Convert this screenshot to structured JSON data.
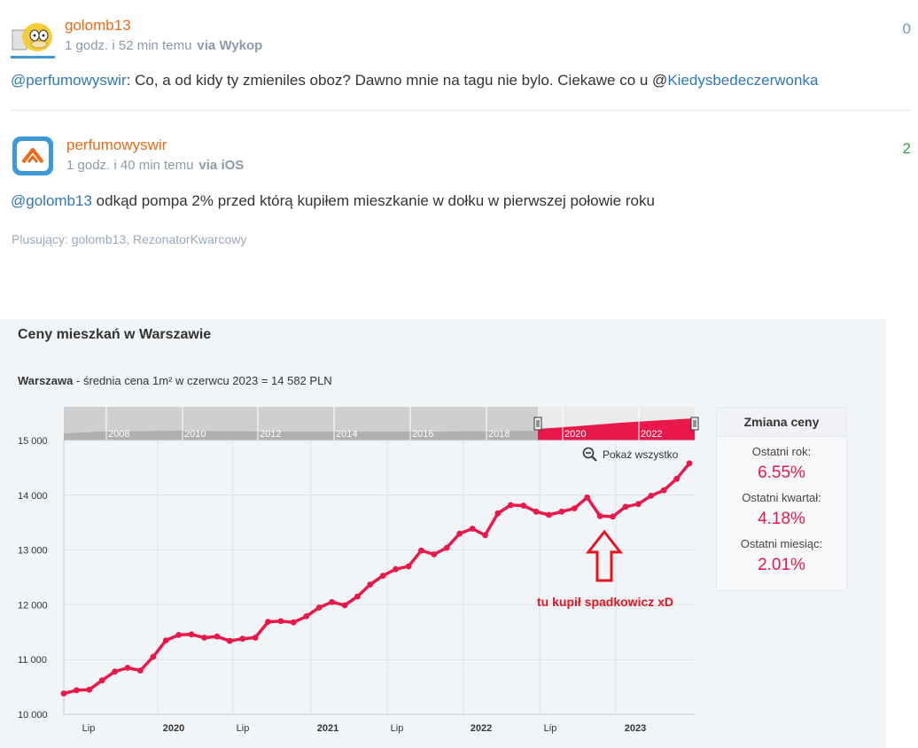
{
  "comments": [
    {
      "author": "golomb13",
      "time": "1 godz. i 52 min temu",
      "via": "via Wykop",
      "votes": "0",
      "mention1": "@perfumowyswir",
      "text": ": Co, a od kidy ty zmieniles oboz? Dawno mnie na tagu nie bylo. Ciekawe co u @",
      "mention2": "Kiedysbedeczerwonka"
    },
    {
      "author": "perfumowyswir",
      "time": "1 godz. i 40 min temu",
      "via": "via iOS",
      "votes": "2",
      "mention1": "@golomb13",
      "text": " odkąd pompa 2% przed którą kupiłem mieszkanie w dołku w pierwszej połowie roku",
      "voters_label": "Plusujący:",
      "voters": "golomb13, RezonatorKwarcowy"
    }
  ],
  "panel": {
    "title": "Ceny mieszkań w Warszawie",
    "subtitle_city": "Warszawa",
    "subtitle_text": " - średnia cena 1m² w czerwcu 2023 = 14 582 PLN",
    "show_all": "Pokaż wszystko",
    "annotation": "tu kupił spadkowicz xD",
    "stats": {
      "header": "Zmiana ceny",
      "items": [
        {
          "label": "Ostatni rok:",
          "value": "6.55%"
        },
        {
          "label": "Ostatni kwartał:",
          "value": "4.18%"
        },
        {
          "label": "Ostatni miesiąc:",
          "value": "2.01%"
        }
      ]
    },
    "colors": {
      "line": "#e8194a",
      "accent": "#e8194a",
      "author": "#ec6a17",
      "link": "#2f77b8"
    }
  },
  "chart_data": {
    "type": "line",
    "ylim": [
      10000,
      15000
    ],
    "yticks": [
      "10 000",
      "11 000",
      "12 000",
      "13 000",
      "14 000",
      "15 000"
    ],
    "xticks": [
      "Lip",
      "2020",
      "Lip",
      "2021",
      "Lip",
      "2022",
      "Lip",
      "2023"
    ],
    "navigator_years": [
      "2008",
      "2010",
      "2012",
      "2014",
      "2016",
      "2018",
      "2020",
      "2022"
    ],
    "series": [
      {
        "values": [
          10380,
          10440,
          10450,
          10620,
          10780,
          10850,
          10800,
          11050,
          11350,
          11450,
          11460,
          11400,
          11420,
          11340,
          11380,
          11400,
          11690,
          11700,
          11680,
          11790,
          11950,
          12050,
          11990,
          12150,
          12370,
          12530,
          12650,
          12700,
          12990,
          12920,
          13040,
          13300,
          13390,
          13270,
          13670,
          13820,
          13810,
          13700,
          13640,
          13700,
          13760,
          13960,
          13620,
          13610,
          13790,
          13840,
          13990,
          14090,
          14300,
          14582
        ]
      }
    ]
  }
}
